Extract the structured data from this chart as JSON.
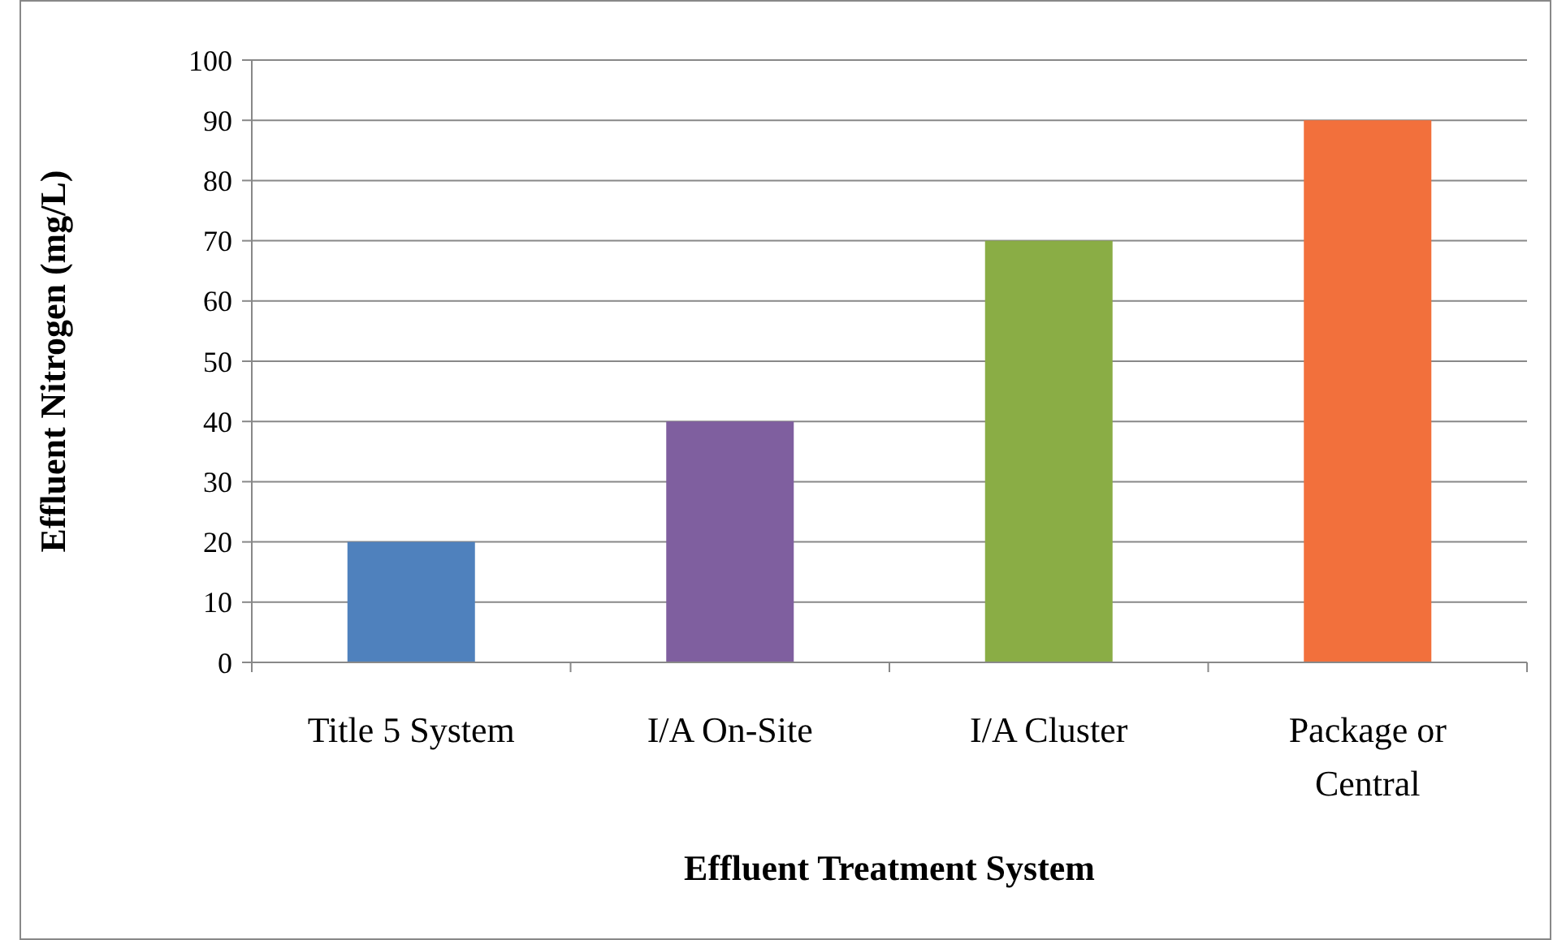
{
  "chart_data": {
    "type": "bar",
    "xlabel": "Effluent Treatment System",
    "ylabel": "Effluent Nitrogen (mg/L)",
    "categories": [
      "Title 5 System",
      "I/A On-Site",
      "I/A Cluster",
      "Package or Central"
    ],
    "values": [
      20,
      40,
      70,
      90
    ],
    "colors": [
      "#4f81bd",
      "#7f5f9f",
      "#8aad45",
      "#f2703c"
    ],
    "ylim": [
      0,
      100
    ],
    "yticks": [
      0,
      10,
      20,
      30,
      40,
      50,
      60,
      70,
      80,
      90,
      100
    ],
    "grid": "y"
  }
}
